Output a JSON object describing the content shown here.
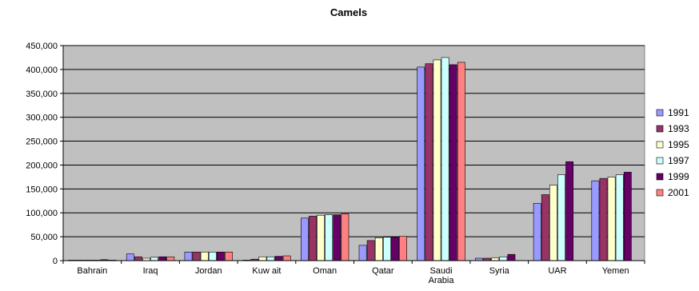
{
  "chart_data": {
    "type": "bar",
    "title": "Camels",
    "xlabel": "",
    "ylabel": "",
    "ylim": [
      0,
      450000
    ],
    "yticks": [
      0,
      50000,
      100000,
      150000,
      200000,
      250000,
      300000,
      350000,
      400000,
      450000
    ],
    "ytick_labels": [
      "0",
      "50,000",
      "100,000",
      "150,000",
      "200,000",
      "250,000",
      "300,000",
      "350,000",
      "400,000",
      "450,000"
    ],
    "categories": [
      "Bahrain",
      "Iraq",
      "Jordan",
      "Kuw ait",
      "Oman",
      "Qatar",
      "Saudi Arabia",
      "Syria",
      "UAR",
      "Yemen"
    ],
    "grid": true,
    "legend_position": "right",
    "plot_background": "#c0c0c0",
    "series": [
      {
        "name": "1991",
        "color": "#9999ff",
        "values": [
          1000,
          14000,
          18000,
          1000,
          89000,
          32000,
          405000,
          5000,
          120000,
          167000
        ]
      },
      {
        "name": "1993",
        "color": "#993366",
        "values": [
          1000,
          8000,
          18000,
          3000,
          93000,
          42000,
          412000,
          5000,
          138000,
          172000
        ]
      },
      {
        "name": "1995",
        "color": "#ffffcc",
        "values": [
          1000,
          5000,
          18000,
          8000,
          95000,
          48000,
          420000,
          6000,
          158000,
          175000
        ]
      },
      {
        "name": "1997",
        "color": "#ccffff",
        "values": [
          1000,
          7000,
          18000,
          8000,
          96000,
          49000,
          425000,
          8000,
          180000,
          180000
        ]
      },
      {
        "name": "1999",
        "color": "#660066",
        "values": [
          2000,
          8000,
          18000,
          9000,
          96000,
          49000,
          410000,
          13000,
          207000,
          185000
        ]
      },
      {
        "name": "2001",
        "color": "#ff8080",
        "values": [
          1000,
          8000,
          18000,
          10000,
          98000,
          51000,
          415000,
          0,
          0,
          0
        ]
      }
    ]
  }
}
